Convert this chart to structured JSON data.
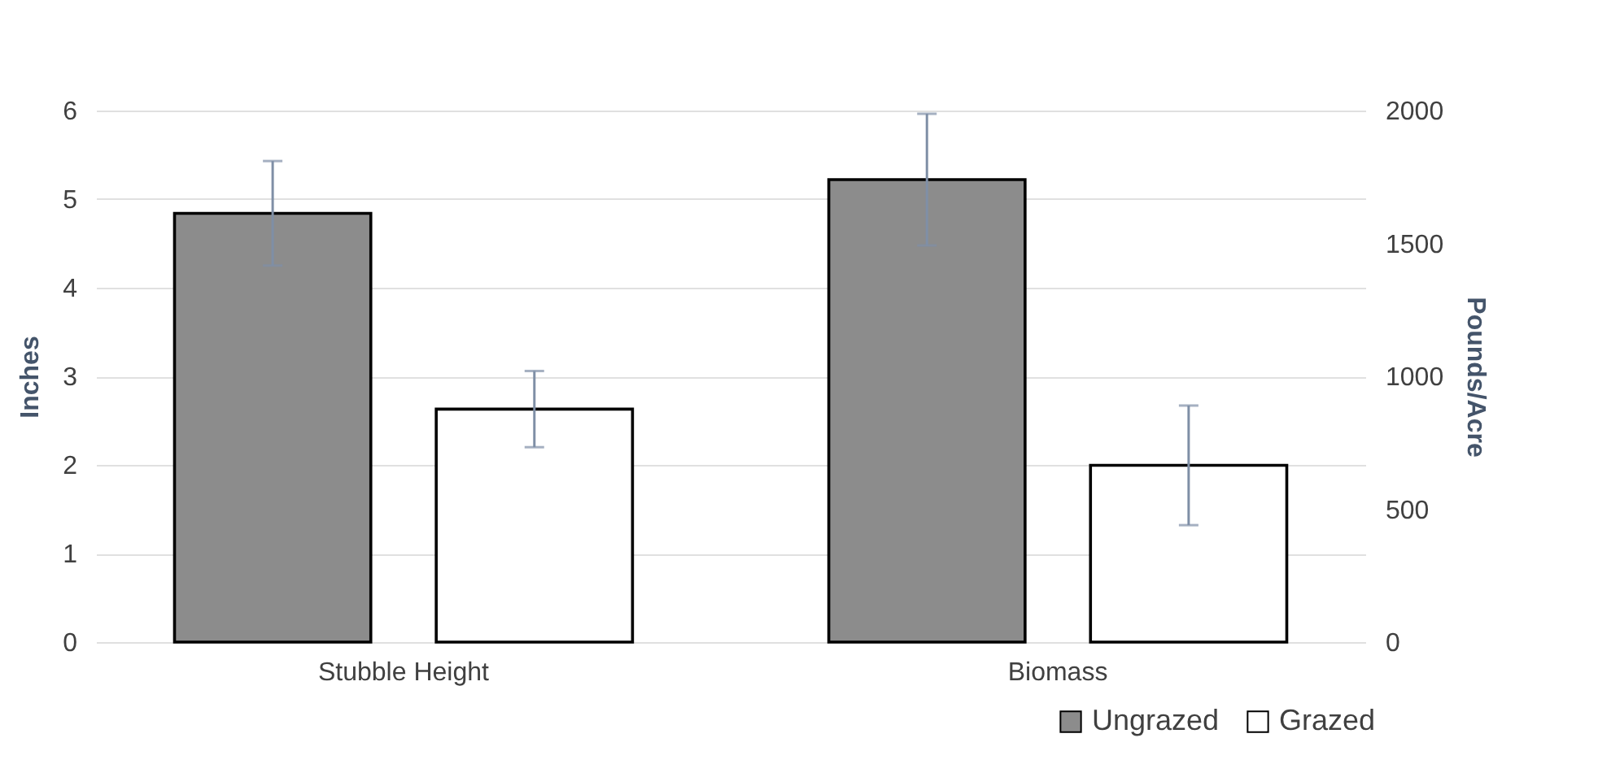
{
  "chart_data": {
    "type": "bar",
    "categories": [
      "Stubble Height",
      "Biomass"
    ],
    "ylabel": "Inches",
    "ylim": [
      0,
      6
    ],
    "yticks": [
      0,
      1,
      2,
      3,
      4,
      5,
      6
    ],
    "y2label": "Pounds/Acre",
    "y2lim": [
      0,
      2000
    ],
    "y2ticks": [
      0,
      500,
      1000,
      1500,
      2000
    ],
    "grid": "y",
    "legend": "bottom right",
    "series": [
      {
        "name": "Ungrazed",
        "color": "#8c8c8c",
        "values": [
          4.84,
          null
        ],
        "errors": [
          0.59,
          null
        ]
      },
      {
        "name": "Grazed",
        "color": "#ffffff",
        "values": [
          2.63,
          null
        ],
        "errors": [
          0.43,
          null
        ]
      },
      {
        "color": "#8c8c8c",
        "values": [
          null,
          1740
        ],
        "errors": [
          null,
          248
        ],
        "axis": "y2"
      },
      {
        "color": "#ffffff",
        "values": [
          null,
          665
        ],
        "errors": [
          null,
          225
        ],
        "axis": "y2"
      }
    ]
  }
}
